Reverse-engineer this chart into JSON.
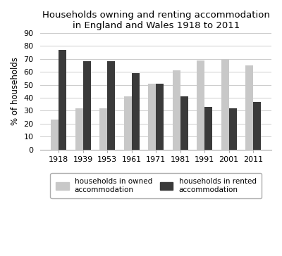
{
  "title": "Households owning and renting accommodation\nin England and Wales 1918 to 2011",
  "ylabel": "% of households",
  "years": [
    "1918",
    "1939",
    "1953",
    "1961",
    "1971",
    "1981",
    "1991",
    "2001",
    "2011"
  ],
  "owned": [
    23,
    32,
    32,
    41,
    51,
    61,
    69,
    70,
    65
  ],
  "rented": [
    77,
    68,
    68,
    59,
    51,
    41,
    33,
    32,
    37
  ],
  "owned_color": "#c8c8c8",
  "rented_color": "#3a3a3a",
  "ylim": [
    0,
    90
  ],
  "yticks": [
    0,
    10,
    20,
    30,
    40,
    50,
    60,
    70,
    80,
    90
  ],
  "legend_owned": "households in owned\naccommodation",
  "legend_rented": "households in rented\naccommodation",
  "bar_width": 0.32,
  "title_fontsize": 9.5,
  "axis_fontsize": 8.5,
  "tick_fontsize": 8,
  "legend_fontsize": 7.5
}
